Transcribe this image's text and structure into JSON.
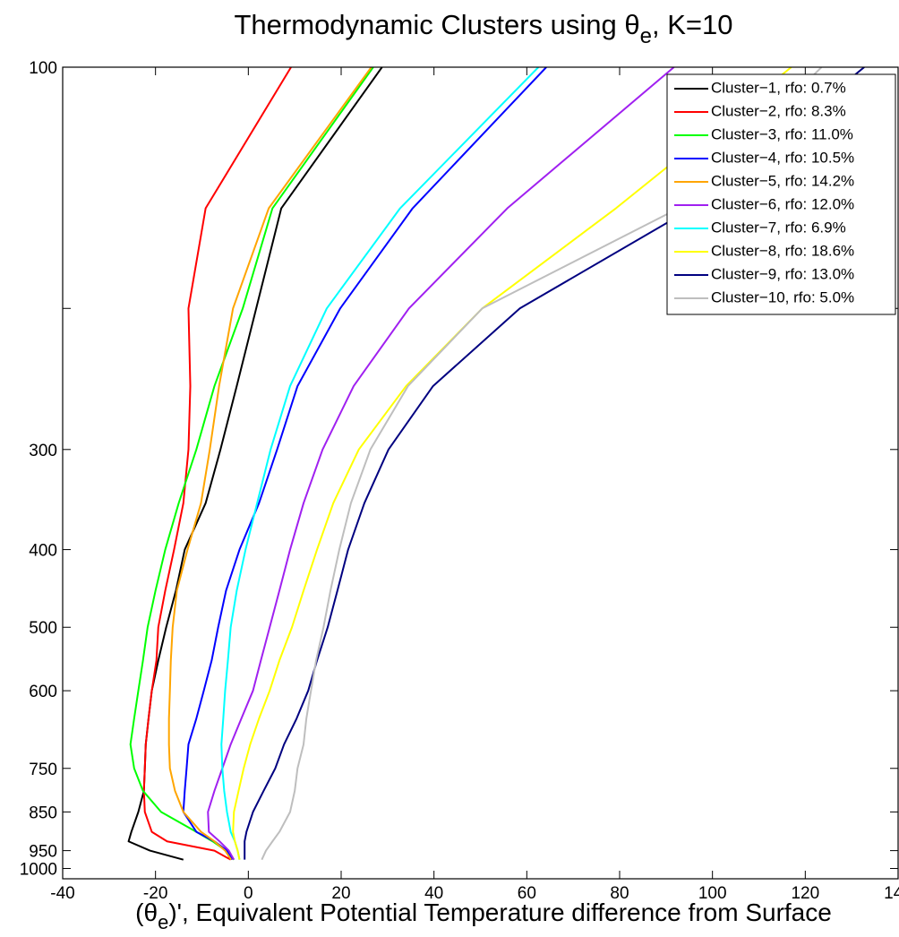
{
  "chart_data": {
    "type": "line",
    "title": [
      "Thermodynamic Clusters using θ",
      "e",
      ", K=10"
    ],
    "xlabel": [
      "(θ",
      "e",
      ")', Equivalent Potential Temperature difference from Surface"
    ],
    "xlim": [
      -40,
      140
    ],
    "xticks": [
      -40,
      -20,
      0,
      20,
      40,
      60,
      80,
      100,
      120,
      140
    ],
    "ylim": [
      100,
      1030
    ],
    "ylog": true,
    "yreverse": true,
    "yticks": [
      100,
      300,
      400,
      500,
      600,
      750,
      850,
      950,
      1000
    ],
    "yticks_unlabeled": [
      200
    ],
    "legend": "upper right",
    "y": [
      100,
      150,
      200,
      250,
      300,
      350,
      400,
      450,
      500,
      550,
      600,
      650,
      700,
      750,
      800,
      850,
      900,
      925,
      950,
      975
    ],
    "series": [
      {
        "name": "Cluster−1, rfo: 0.7%",
        "color": "#000000",
        "values": [
          28.8,
          7.1,
          1.7,
          -2.5,
          -6,
          -9.2,
          -13.7,
          -15.6,
          -17.7,
          -19.4,
          -20.8,
          -21.5,
          -22.1,
          -22.3,
          -22.5,
          -23.7,
          -25.2,
          -25.8,
          -21.2,
          -14
        ]
      },
      {
        "name": "Cluster−2, rfo: 8.3%",
        "color": "#ff0000",
        "values": [
          9.2,
          -9.2,
          -12.9,
          -12.5,
          -12.9,
          -14,
          -16,
          -17.9,
          -19.4,
          -19.8,
          -20.8,
          -21.5,
          -22.1,
          -22.3,
          -22.5,
          -22.3,
          -20.8,
          -17.5,
          -7.3,
          -3.8
        ]
      },
      {
        "name": "Cluster−3, rfo: 11.0%",
        "color": "#00ff00",
        "values": [
          26.9,
          5.2,
          -1.2,
          -7.3,
          -11.2,
          -15,
          -17.9,
          -20,
          -21.7,
          -22.7,
          -23.7,
          -24.6,
          -25.4,
          -24.6,
          -22.7,
          -18.8,
          -11.2,
          -7.7,
          -4.8,
          -3.1
        ]
      },
      {
        "name": "Cluster−4, rfo: 10.5%",
        "color": "#0000ff",
        "values": [
          64.2,
          35.4,
          19.8,
          10.6,
          6.2,
          2.3,
          -1.9,
          -4.8,
          -6.5,
          -7.9,
          -9.6,
          -11.2,
          -12.9,
          -13.3,
          -13.7,
          -14,
          -11.2,
          -7.3,
          -4.6,
          -3.5
        ]
      },
      {
        "name": "Cluster−5, rfo: 14.2%",
        "color": "#ffa500",
        "values": [
          26.5,
          4.4,
          -3.3,
          -6.3,
          -8.3,
          -10.2,
          -13.1,
          -15.4,
          -16.3,
          -16.7,
          -16.9,
          -17.1,
          -17.1,
          -16.9,
          -15.8,
          -14,
          -10.2,
          -7.3,
          -5,
          -3.7
        ]
      },
      {
        "name": "Cluster−6, rfo: 12.0%",
        "color": "#a020f0",
        "values": [
          91.7,
          55.8,
          34.6,
          22.7,
          16,
          11.9,
          9,
          6.7,
          4.6,
          2.7,
          1,
          -1.5,
          -3.8,
          -5.6,
          -7.3,
          -8.7,
          -8.5,
          -6.2,
          -4.2,
          -3.1
        ]
      },
      {
        "name": "Cluster−7, rfo: 6.9%",
        "color": "#00ffff",
        "values": [
          62.5,
          32.7,
          16.9,
          9,
          4.8,
          1.9,
          -0.6,
          -2.5,
          -3.8,
          -4.4,
          -5,
          -5.4,
          -5.8,
          -5.6,
          -5.2,
          -4.6,
          -3.8,
          -2.9,
          -2.3,
          -1.9
        ]
      },
      {
        "name": "Cluster−8, rfo: 18.6%",
        "color": "#ffff00",
        "values": [
          117,
          79.2,
          50.4,
          34,
          23.8,
          18.3,
          14.8,
          11.9,
          9.4,
          6.7,
          4.6,
          2.3,
          0.4,
          -1,
          -2.1,
          -3.1,
          -3.3,
          -2.9,
          -2.3,
          -1.9
        ]
      },
      {
        "name": "Cluster−9, rfo: 13.0%",
        "color": "#000080",
        "values": [
          132.7,
          95.6,
          58.5,
          39.8,
          30.2,
          25,
          21.5,
          19.2,
          17.1,
          14.8,
          12.9,
          10.4,
          7.7,
          5.8,
          3.3,
          1,
          -0.4,
          -0.8,
          -0.8,
          -0.8
        ]
      },
      {
        "name": "Cluster−10, rfo: 5.0%",
        "color": "#bebebe",
        "values": [
          123.5,
          92.7,
          50.4,
          34.4,
          26.3,
          22.1,
          19.6,
          17.7,
          16.2,
          14.6,
          13.5,
          12.5,
          11.9,
          10.6,
          10,
          9,
          6.7,
          5.2,
          3.8,
          2.9
        ]
      }
    ]
  }
}
